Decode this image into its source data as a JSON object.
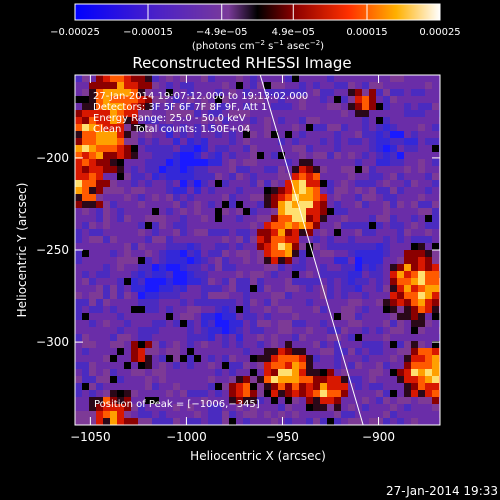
{
  "chart_data": {
    "type": "heatmap",
    "title": "Reconstructed RHESSI Image",
    "xlabel": "Heliocentric X (arcsec)",
    "ylabel": "Heliocentric Y (arcsec)",
    "xlim": [
      -1058,
      -868
    ],
    "ylim": [
      -345,
      -155
    ],
    "xticks": [
      -1050,
      -1000,
      -950,
      -900
    ],
    "xtick_labels": [
      "−1050",
      "−1000",
      "−950",
      "−900"
    ],
    "yticks": [
      -200,
      -250,
      -300
    ],
    "ytick_labels": [
      "−200",
      "−250",
      "−300"
    ],
    "annotations": [
      "27-Jan-2014 19:07:12.000 to 19:13:02.000",
      "Detectors: 3F 5F 6F 7F 8F 9F, Att 1",
      "Energy Range: 25.0 - 50.0 keV",
      "Clean    Total counts: 1.50E+04"
    ],
    "peak_label": "Position of Peak = [−1006,−345]",
    "peak_position": [
      -1006,
      -345
    ],
    "limb_line": [
      [
        -963,
        -150
      ],
      [
        -908,
        -345
      ]
    ],
    "colorbar": {
      "min": -0.00025,
      "max": 0.00025,
      "tick_labels": [
        "−0.00025",
        "−0.00015",
        "−4.9e−05",
        "4.9e−05",
        "0.00015",
        "0.00025"
      ],
      "tick_values": [
        -0.00025,
        -0.00015,
        -4.9e-05,
        4.9e-05,
        0.00015,
        0.00025
      ],
      "units_text": "(photons cm",
      "units_sup1": "−2",
      "units_mid": " s",
      "units_sup2": "−1",
      "units_mid2": " asec",
      "units_sup3": "−2",
      "units_end": ")"
    },
    "colors": [
      "#0000ff",
      "#3a1fd0",
      "#6020a0",
      "#7a3a9a",
      "#000000",
      "#8b0000",
      "#ff2000",
      "#ff8c00",
      "#ffd040",
      "#ffffff"
    ],
    "grid": false
  },
  "footer": {
    "timestamp": "27-Jan-2014 19:33"
  }
}
